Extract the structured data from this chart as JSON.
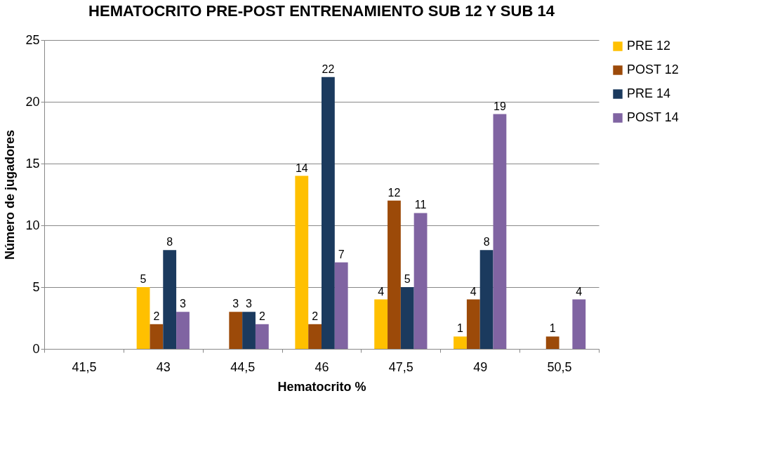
{
  "chart_data": {
    "type": "bar",
    "title": "HEMATOCRITO PRE-POST ENTRENAMIENTO SUB 12 Y  SUB 14",
    "xlabel": "Hematocrito %",
    "ylabel": "Número de jugadores",
    "categories": [
      "41,5",
      "43",
      "44,5",
      "46",
      "47,5",
      "49",
      "50,5"
    ],
    "series": [
      {
        "name": "PRE 12",
        "color": "#ffc000",
        "values": [
          null,
          5,
          null,
          14,
          4,
          1,
          null
        ],
        "value_labels": [
          null,
          "5",
          null,
          "14",
          "4",
          "1",
          null
        ]
      },
      {
        "name": "POST 12",
        "color": "#9c4a09",
        "values": [
          null,
          2,
          3,
          2,
          12,
          4,
          1
        ],
        "value_labels": [
          null,
          "2",
          "3",
          "2",
          "12",
          "4",
          "1"
        ]
      },
      {
        "name": "PRE 14",
        "color": "#1b3a5e",
        "values": [
          null,
          8,
          3,
          22,
          5,
          8,
          null
        ],
        "value_labels": [
          null,
          "8",
          "3",
          "22",
          "5",
          "8",
          null
        ]
      },
      {
        "name": "POST 14",
        "color": "#8064a2",
        "values": [
          null,
          3,
          2,
          7,
          11,
          19,
          4
        ],
        "value_labels": [
          null,
          "3",
          "2",
          "7",
          "11",
          "19",
          "4"
        ]
      }
    ],
    "ylim": [
      0,
      25
    ],
    "yticks": [
      0,
      5,
      10,
      15,
      20,
      25
    ],
    "grid": "y",
    "legend": "right"
  }
}
